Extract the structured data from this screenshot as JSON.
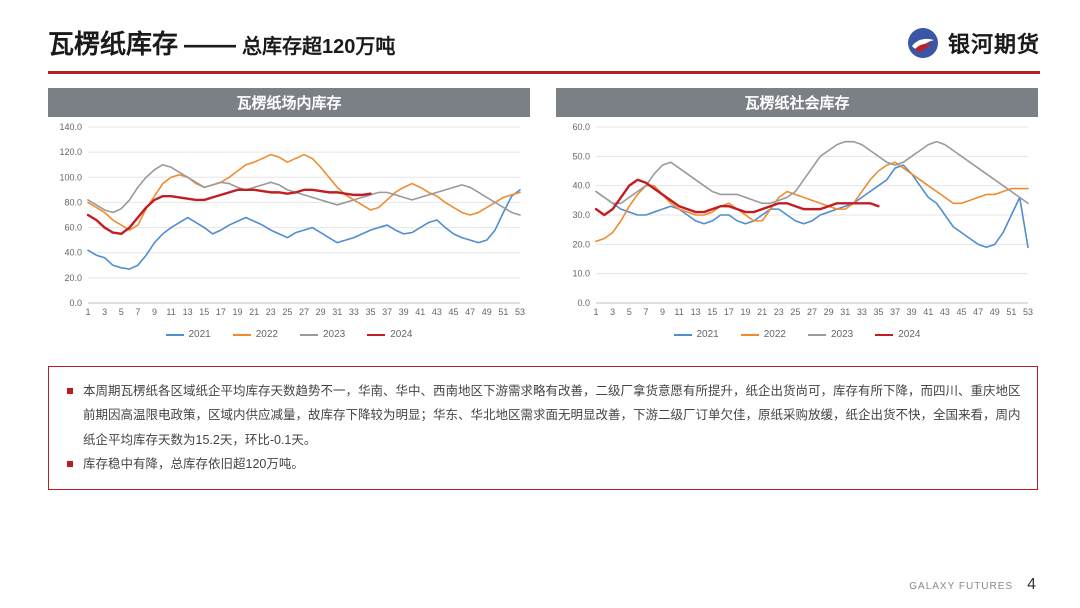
{
  "header": {
    "title_main": "瓦楞纸库存",
    "title_sep": "——",
    "title_sub": "总库存超120万吨",
    "logo_text": "银河期货",
    "logo_colors": {
      "ring": "#3a57a6",
      "swirl_white": "#ffffff",
      "swirl_red": "#c02128"
    }
  },
  "rule_color": "#b51f24",
  "legend_labels": [
    "2021",
    "2022",
    "2023",
    "2024"
  ],
  "series_colors": {
    "2021": "#4e8ed1",
    "2022": "#f08b2e",
    "2023": "#9a9a9a",
    "2024": "#c21d24"
  },
  "chart_style": {
    "axis_color": "#bfbfbf",
    "grid_color": "#e6e6e6",
    "tick_font": 9,
    "label_color": "#666666",
    "line_width": 1.6,
    "line_width_2024": 2.4,
    "background": "#ffffff"
  },
  "x_ticks": [
    1,
    3,
    5,
    7,
    9,
    11,
    13,
    15,
    17,
    19,
    21,
    23,
    25,
    27,
    29,
    31,
    33,
    35,
    37,
    39,
    41,
    43,
    45,
    47,
    49,
    51,
    53
  ],
  "chart_left": {
    "title": "瓦楞纸场内库存",
    "ylim": [
      0,
      140
    ],
    "ytick_step": 20,
    "yticks": [
      "0.0",
      "20.0",
      "40.0",
      "60.0",
      "80.0",
      "100.0",
      "120.0",
      "140.0"
    ],
    "series": {
      "2021": [
        42,
        38,
        36,
        30,
        28,
        27,
        30,
        38,
        48,
        55,
        60,
        64,
        68,
        64,
        60,
        55,
        58,
        62,
        65,
        68,
        65,
        62,
        58,
        55,
        52,
        56,
        58,
        60,
        56,
        52,
        48,
        50,
        52,
        55,
        58,
        60,
        62,
        58,
        55,
        56,
        60,
        64,
        66,
        60,
        55,
        52,
        50,
        48,
        50,
        58,
        72,
        85,
        90
      ],
      "2022": [
        80,
        76,
        72,
        66,
        62,
        58,
        62,
        75,
        85,
        95,
        100,
        102,
        100,
        95,
        92,
        94,
        96,
        100,
        105,
        110,
        112,
        115,
        118,
        116,
        112,
        115,
        118,
        115,
        108,
        100,
        92,
        86,
        82,
        78,
        74,
        76,
        82,
        88,
        92,
        95,
        92,
        88,
        85,
        80,
        76,
        72,
        70,
        72,
        76,
        80,
        84,
        86,
        88
      ],
      "2023": [
        82,
        78,
        74,
        72,
        75,
        82,
        92,
        100,
        106,
        110,
        108,
        104,
        100,
        96,
        92,
        94,
        96,
        95,
        92,
        90,
        92,
        94,
        96,
        94,
        90,
        88,
        86,
        84,
        82,
        80,
        78,
        80,
        82,
        84,
        86,
        88,
        88,
        86,
        84,
        82,
        84,
        86,
        88,
        90,
        92,
        94,
        92,
        88,
        84,
        80,
        76,
        72,
        70
      ],
      "2024": [
        70,
        66,
        60,
        56,
        55,
        60,
        68,
        76,
        82,
        85,
        85,
        84,
        83,
        82,
        82,
        84,
        86,
        88,
        90,
        90,
        90,
        89,
        88,
        88,
        87,
        88,
        90,
        90,
        89,
        88,
        88,
        87,
        86,
        86,
        87
      ]
    }
  },
  "chart_right": {
    "title": "瓦楞纸社会库存",
    "ylim": [
      0,
      60
    ],
    "ytick_step": 10,
    "yticks": [
      "0.0",
      "10.0",
      "20.0",
      "30.0",
      "40.0",
      "50.0",
      "60.0"
    ],
    "series": {
      "2021": [
        38,
        36,
        34,
        32,
        31,
        30,
        30,
        31,
        32,
        33,
        32,
        30,
        28,
        27,
        28,
        30,
        30,
        28,
        27,
        28,
        30,
        32,
        32,
        30,
        28,
        27,
        28,
        30,
        31,
        32,
        33,
        34,
        36,
        38,
        40,
        42,
        46,
        47,
        44,
        40,
        36,
        34,
        30,
        26,
        24,
        22,
        20,
        19,
        20,
        24,
        30,
        36,
        19
      ],
      "2022": [
        21,
        22,
        24,
        28,
        33,
        37,
        40,
        40,
        37,
        34,
        32,
        31,
        30,
        30,
        31,
        33,
        34,
        32,
        30,
        28,
        28,
        32,
        36,
        38,
        37,
        36,
        35,
        34,
        33,
        32,
        32,
        34,
        38,
        42,
        45,
        47,
        48,
        46,
        44,
        42,
        40,
        38,
        36,
        34,
        34,
        35,
        36,
        37,
        37,
        38,
        39,
        39,
        39
      ],
      "2023": [
        38,
        36,
        34,
        34,
        36,
        38,
        40,
        44,
        47,
        48,
        46,
        44,
        42,
        40,
        38,
        37,
        37,
        37,
        36,
        35,
        34,
        34,
        35,
        36,
        38,
        42,
        46,
        50,
        52,
        54,
        55,
        55,
        54,
        52,
        50,
        48,
        47,
        48,
        50,
        52,
        54,
        55,
        54,
        52,
        50,
        48,
        46,
        44,
        42,
        40,
        38,
        36,
        34
      ],
      "2024": [
        32,
        30,
        32,
        36,
        40,
        42,
        41,
        39,
        37,
        35,
        33,
        32,
        31,
        31,
        32,
        33,
        33,
        32,
        31,
        31,
        32,
        33,
        34,
        34,
        33,
        32,
        32,
        32,
        33,
        34,
        34,
        34,
        34,
        34,
        33
      ]
    }
  },
  "notes": [
    "本周期瓦楞纸各区域纸企平均库存天数趋势不一，华南、华中、西南地区下游需求略有改善，二级厂拿货意愿有所提升，纸企出货尚可，库存有所下降，而四川、重庆地区前期因高温限电政策，区域内供应减量，故库存下降较为明显；华东、华北地区需求面无明显改善，下游二级厂订单欠佳，原纸采购放缓，纸企出货不快，全国来看，周内纸企平均库存天数为15.2天，环比-0.1天。",
    "库存稳中有降，总库存依旧超120万吨。"
  ],
  "footer": {
    "brand": "GALAXY  FUTURES",
    "page": "4"
  }
}
